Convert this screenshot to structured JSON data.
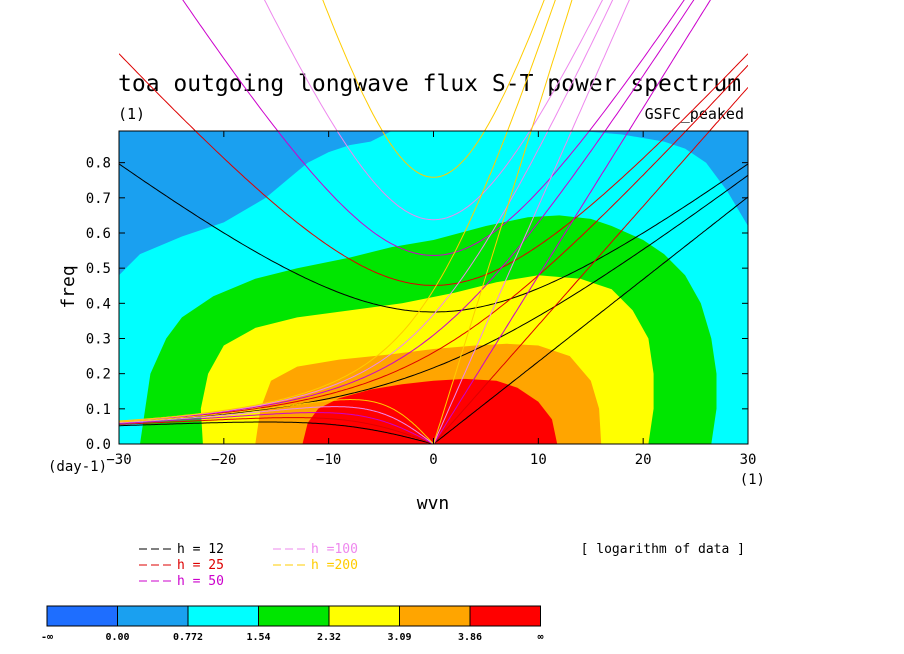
{
  "chart_data": {
    "type": "heatmap",
    "title": "toa outgoing longwave flux S-T power spectrum",
    "subtitle_left": "(1)",
    "subtitle_right": "GSFC_peaked",
    "xlabel": "wvn",
    "ylabel": "freq",
    "x_unit": "(1)",
    "y_unit": "(day-1)",
    "xlim": [
      -30,
      30
    ],
    "ylim": [
      0,
      0.89
    ],
    "xticks": [
      -30,
      -20,
      -10,
      0,
      10,
      20,
      30
    ],
    "yticks": [
      0.0,
      0.1,
      0.2,
      0.3,
      0.4,
      0.5,
      0.6,
      0.7,
      0.8
    ],
    "ytick_labels": [
      "0.0",
      "0.1",
      "0.2",
      "0.3",
      "0.4",
      "0.5",
      "0.6",
      "0.7",
      "0.8"
    ],
    "note": "[ logarithm of data ]",
    "colorbar": {
      "labels": [
        "-∞",
        "0.00",
        "0.772",
        "1.54",
        "2.32",
        "3.09",
        "3.86",
        "∞"
      ],
      "colors": [
        "#1e6eff",
        "#1aa0f0",
        "#00ffff",
        "#00e600",
        "#ffff00",
        "#ffa500",
        "#ff0000"
      ]
    },
    "contour_levels": [
      {
        "name": "band-blue",
        "color": "#1aa0f0",
        "points": [
          [
            -30,
            0.89
          ],
          [
            -28,
            0.89
          ],
          [
            -26,
            0.89
          ],
          [
            -24,
            0.89
          ],
          [
            -22,
            0.89
          ],
          [
            -20,
            0.89
          ],
          [
            -18,
            0.89
          ],
          [
            -16,
            0.89
          ],
          [
            -14,
            0.89
          ],
          [
            -12,
            0.89
          ],
          [
            -10,
            0.89
          ],
          [
            -8,
            0.89
          ],
          [
            -6,
            0.89
          ],
          [
            -4,
            0.89
          ],
          [
            -2,
            0.89
          ],
          [
            0,
            0.89
          ],
          [
            2,
            0.89
          ],
          [
            4,
            0.89
          ],
          [
            6,
            0.89
          ],
          [
            8,
            0.89
          ],
          [
            10,
            0.89
          ],
          [
            12,
            0.89
          ],
          [
            14,
            0.89
          ],
          [
            16,
            0.89
          ],
          [
            18,
            0.89
          ],
          [
            20,
            0.89
          ],
          [
            22,
            0.89
          ],
          [
            24,
            0.89
          ],
          [
            26,
            0.89
          ],
          [
            28,
            0.89
          ],
          [
            30,
            0.89
          ],
          [
            30,
            0
          ],
          [
            -30,
            0
          ]
        ]
      },
      {
        "name": "band-cyan",
        "color": "#00ffff",
        "points": [
          [
            -30,
            0.48
          ],
          [
            -28,
            0.54
          ],
          [
            -24,
            0.59
          ],
          [
            -20,
            0.63
          ],
          [
            -16,
            0.7
          ],
          [
            -14,
            0.75
          ],
          [
            -12,
            0.8
          ],
          [
            -10,
            0.83
          ],
          [
            -8,
            0.85
          ],
          [
            -6,
            0.86
          ],
          [
            -4,
            0.89
          ],
          [
            2,
            0.89
          ],
          [
            8,
            0.89
          ],
          [
            14,
            0.89
          ],
          [
            18,
            0.88
          ],
          [
            22,
            0.86
          ],
          [
            24,
            0.84
          ],
          [
            26,
            0.8
          ],
          [
            28,
            0.72
          ],
          [
            30,
            0.62
          ],
          [
            30,
            0
          ],
          [
            -30,
            0
          ]
        ]
      },
      {
        "name": "band-green",
        "color": "#00e600",
        "points": [
          [
            -28,
            0
          ],
          [
            -27.5,
            0.1
          ],
          [
            -27,
            0.2
          ],
          [
            -25.5,
            0.3
          ],
          [
            -24,
            0.36
          ],
          [
            -21,
            0.42
          ],
          [
            -17,
            0.47
          ],
          [
            -13,
            0.5
          ],
          [
            -8,
            0.53
          ],
          [
            -4,
            0.56
          ],
          [
            0,
            0.58
          ],
          [
            5,
            0.62
          ],
          [
            9,
            0.645
          ],
          [
            12,
            0.65
          ],
          [
            15,
            0.64
          ],
          [
            17,
            0.62
          ],
          [
            20,
            0.58
          ],
          [
            22,
            0.54
          ],
          [
            24,
            0.48
          ],
          [
            25.5,
            0.4
          ],
          [
            26.5,
            0.3
          ],
          [
            27,
            0.2
          ],
          [
            27,
            0.1
          ],
          [
            26.5,
            0
          ]
        ]
      },
      {
        "name": "band-yellow",
        "color": "#ffff00",
        "points": [
          [
            -22,
            0
          ],
          [
            -22.2,
            0.1
          ],
          [
            -21.5,
            0.2
          ],
          [
            -20,
            0.28
          ],
          [
            -17,
            0.33
          ],
          [
            -13,
            0.36
          ],
          [
            -8,
            0.38
          ],
          [
            -3,
            0.4
          ],
          [
            2,
            0.43
          ],
          [
            6,
            0.46
          ],
          [
            10,
            0.48
          ],
          [
            14,
            0.47
          ],
          [
            17,
            0.44
          ],
          [
            19,
            0.38
          ],
          [
            20.5,
            0.3
          ],
          [
            21,
            0.2
          ],
          [
            21,
            0.1
          ],
          [
            20.5,
            0
          ]
        ]
      },
      {
        "name": "band-orange",
        "color": "#ffa500",
        "points": [
          [
            -17,
            0
          ],
          [
            -16.5,
            0.1
          ],
          [
            -15.5,
            0.18
          ],
          [
            -13,
            0.22
          ],
          [
            -9,
            0.24
          ],
          [
            -4,
            0.255
          ],
          [
            0,
            0.27
          ],
          [
            4,
            0.28
          ],
          [
            7,
            0.285
          ],
          [
            10,
            0.28
          ],
          [
            13,
            0.25
          ],
          [
            15,
            0.18
          ],
          [
            15.8,
            0.1
          ],
          [
            16,
            0
          ]
        ]
      },
      {
        "name": "band-red",
        "color": "#ff0000",
        "points": [
          [
            -12.5,
            0
          ],
          [
            -12,
            0.06
          ],
          [
            -11,
            0.1
          ],
          [
            -9,
            0.13
          ],
          [
            -6,
            0.155
          ],
          [
            -3,
            0.17
          ],
          [
            0,
            0.18
          ],
          [
            3,
            0.185
          ],
          [
            6,
            0.18
          ],
          [
            8,
            0.16
          ],
          [
            10,
            0.12
          ],
          [
            11.3,
            0.07
          ],
          [
            11.8,
            0
          ]
        ]
      }
    ],
    "dispersion_series": [
      {
        "name": "h = 12",
        "color": "#000000",
        "he": 12
      },
      {
        "name": "h = 25",
        "color": "#dd0000",
        "he": 25
      },
      {
        "name": "h = 50",
        "color": "#cc00cc",
        "he": 50
      },
      {
        "name": "h =100",
        "color": "#ee88ee",
        "he": 100
      },
      {
        "name": "h =200",
        "color": "#ffcc00",
        "he": 200
      }
    ]
  }
}
